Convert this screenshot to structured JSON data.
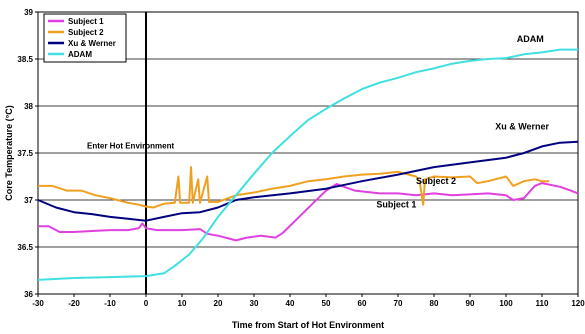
{
  "chart_data": {
    "type": "line",
    "xlabel": "Time from Start of Hot Environment",
    "ylabel": "Core Temperature (°C)",
    "xlim": [
      -30,
      120
    ],
    "ylim": [
      36,
      39
    ],
    "xticks": [
      -30,
      -20,
      -10,
      0,
      10,
      20,
      30,
      40,
      50,
      60,
      70,
      80,
      90,
      100,
      110,
      120
    ],
    "yticks": [
      36,
      36.5,
      37,
      37.5,
      38,
      38.5,
      39
    ],
    "grid": "horizontal",
    "legend_position": "top-left",
    "vertical_marker": {
      "x": 0,
      "label": "Enter Hot Environment"
    },
    "series": [
      {
        "name": "Subject 1",
        "color": "#e040e0",
        "points": [
          [
            -30,
            36.72
          ],
          [
            -27,
            36.72
          ],
          [
            -24,
            36.66
          ],
          [
            -20,
            36.66
          ],
          [
            -15,
            36.67
          ],
          [
            -10,
            36.68
          ],
          [
            -5,
            36.68
          ],
          [
            -2,
            36.7
          ],
          [
            -1,
            36.75
          ],
          [
            0,
            36.7
          ],
          [
            3,
            36.68
          ],
          [
            10,
            36.68
          ],
          [
            15,
            36.69
          ],
          [
            17,
            36.64
          ],
          [
            20,
            36.62
          ],
          [
            25,
            36.57
          ],
          [
            28,
            36.6
          ],
          [
            32,
            36.62
          ],
          [
            36,
            36.6
          ],
          [
            38,
            36.65
          ],
          [
            42,
            36.8
          ],
          [
            46,
            36.95
          ],
          [
            50,
            37.1
          ],
          [
            53,
            37.17
          ],
          [
            55,
            37.14
          ],
          [
            58,
            37.1
          ],
          [
            65,
            37.07
          ],
          [
            70,
            37.07
          ],
          [
            75,
            37.05
          ],
          [
            80,
            37.07
          ],
          [
            85,
            37.05
          ],
          [
            90,
            37.06
          ],
          [
            95,
            37.07
          ],
          [
            100,
            37.05
          ],
          [
            102,
            37.0
          ],
          [
            105,
            37.02
          ],
          [
            108,
            37.15
          ],
          [
            110,
            37.18
          ],
          [
            115,
            37.14
          ],
          [
            118,
            37.1
          ],
          [
            120,
            37.07
          ]
        ]
      },
      {
        "name": "Subject 2",
        "color": "#f0a020",
        "points": [
          [
            -30,
            37.15
          ],
          [
            -26,
            37.15
          ],
          [
            -22,
            37.1
          ],
          [
            -18,
            37.1
          ],
          [
            -14,
            37.05
          ],
          [
            -10,
            37.02
          ],
          [
            -5,
            36.97
          ],
          [
            -2,
            36.95
          ],
          [
            0,
            36.93
          ],
          [
            2,
            36.92
          ],
          [
            5,
            36.96
          ],
          [
            8,
            36.97
          ],
          [
            9,
            37.25
          ],
          [
            9.5,
            36.97
          ],
          [
            12,
            36.97
          ],
          [
            12.5,
            37.35
          ],
          [
            13,
            36.97
          ],
          [
            14.5,
            37.22
          ],
          [
            15,
            36.97
          ],
          [
            17,
            37.25
          ],
          [
            17.5,
            36.98
          ],
          [
            20,
            36.98
          ],
          [
            25,
            37.05
          ],
          [
            30,
            37.08
          ],
          [
            35,
            37.12
          ],
          [
            40,
            37.15
          ],
          [
            45,
            37.2
          ],
          [
            50,
            37.22
          ],
          [
            55,
            37.25
          ],
          [
            60,
            37.27
          ],
          [
            65,
            37.28
          ],
          [
            70,
            37.3
          ],
          [
            75,
            37.25
          ],
          [
            76,
            37.2
          ],
          [
            77,
            36.95
          ],
          [
            77.5,
            37.22
          ],
          [
            80,
            37.25
          ],
          [
            85,
            37.24
          ],
          [
            90,
            37.25
          ],
          [
            92,
            37.18
          ],
          [
            95,
            37.2
          ],
          [
            100,
            37.25
          ],
          [
            102,
            37.15
          ],
          [
            105,
            37.2
          ],
          [
            108,
            37.22
          ],
          [
            110,
            37.2
          ],
          [
            112,
            37.2
          ]
        ]
      },
      {
        "name": "Xu & Werner",
        "color": "#000080",
        "points": [
          [
            -30,
            37.0
          ],
          [
            -25,
            36.92
          ],
          [
            -20,
            36.87
          ],
          [
            -15,
            36.85
          ],
          [
            -10,
            36.82
          ],
          [
            -5,
            36.8
          ],
          [
            0,
            36.78
          ],
          [
            5,
            36.82
          ],
          [
            10,
            36.86
          ],
          [
            15,
            36.87
          ],
          [
            20,
            36.92
          ],
          [
            25,
            37.0
          ],
          [
            30,
            37.03
          ],
          [
            40,
            37.07
          ],
          [
            50,
            37.12
          ],
          [
            60,
            37.2
          ],
          [
            70,
            37.27
          ],
          [
            80,
            37.35
          ],
          [
            90,
            37.4
          ],
          [
            100,
            37.45
          ],
          [
            105,
            37.5
          ],
          [
            110,
            37.57
          ],
          [
            115,
            37.61
          ],
          [
            120,
            37.62
          ]
        ]
      },
      {
        "name": "ADAM",
        "color": "#40e0e0",
        "points": [
          [
            -30,
            36.15
          ],
          [
            -20,
            36.17
          ],
          [
            -10,
            36.18
          ],
          [
            0,
            36.19
          ],
          [
            5,
            36.22
          ],
          [
            8,
            36.3
          ],
          [
            12,
            36.42
          ],
          [
            16,
            36.6
          ],
          [
            20,
            36.82
          ],
          [
            25,
            37.05
          ],
          [
            30,
            37.28
          ],
          [
            35,
            37.5
          ],
          [
            40,
            37.68
          ],
          [
            45,
            37.85
          ],
          [
            50,
            37.97
          ],
          [
            55,
            38.08
          ],
          [
            60,
            38.18
          ],
          [
            65,
            38.25
          ],
          [
            70,
            38.3
          ],
          [
            75,
            38.36
          ],
          [
            80,
            38.4
          ],
          [
            85,
            38.45
          ],
          [
            90,
            38.48
          ],
          [
            95,
            38.5
          ],
          [
            100,
            38.51
          ],
          [
            105,
            38.55
          ],
          [
            110,
            38.57
          ],
          [
            115,
            38.6
          ],
          [
            120,
            38.6
          ]
        ]
      }
    ],
    "annotations": [
      {
        "text": "ADAM",
        "x": 103,
        "y": 38.68,
        "size": 9
      },
      {
        "text": "Xu & Werner",
        "x": 97,
        "y": 37.75,
        "size": 9
      },
      {
        "text": "Subject 2",
        "x": 75,
        "y": 37.17,
        "size": 9
      },
      {
        "text": "Subject 1",
        "x": 64,
        "y": 36.92,
        "size": 9
      }
    ]
  }
}
